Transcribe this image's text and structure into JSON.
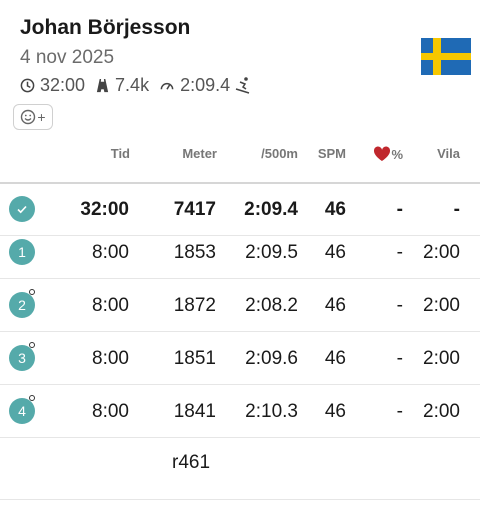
{
  "profile": {
    "name": "Johan Börjesson",
    "date": "4 nov 2025",
    "time": "32:00",
    "distance": "7.4k",
    "pace": "2:09.4",
    "flag": "sweden-flag",
    "react_plus": "+"
  },
  "table": {
    "headers": {
      "time": "Tid",
      "meter": "Meter",
      "pace": "/500m",
      "spm": "SPM",
      "hr_percent": "%",
      "rest": "Vila"
    },
    "total": {
      "time": "32:00",
      "meter": "7417",
      "pace": "2:09.4",
      "spm": "46",
      "hr": "-",
      "rest": "-"
    },
    "intervals": [
      {
        "num": "1",
        "time": "8:00",
        "meter": "1853",
        "pace": "2:09.5",
        "spm": "46",
        "hr": "-",
        "rest": "2:00"
      },
      {
        "num": "2",
        "time": "8:00",
        "meter": "1872",
        "pace": "2:08.2",
        "spm": "46",
        "hr": "-",
        "rest": "2:00"
      },
      {
        "num": "3",
        "time": "8:00",
        "meter": "1851",
        "pace": "2:09.6",
        "spm": "46",
        "hr": "-",
        "rest": "2:00"
      },
      {
        "num": "4",
        "time": "8:00",
        "meter": "1841",
        "pace": "2:10.3",
        "spm": "46",
        "hr": "-",
        "rest": "2:00"
      }
    ]
  },
  "footer": {
    "text": "r461"
  },
  "colors": {
    "badge": "#55aaaa",
    "heart": "#c0272d"
  }
}
